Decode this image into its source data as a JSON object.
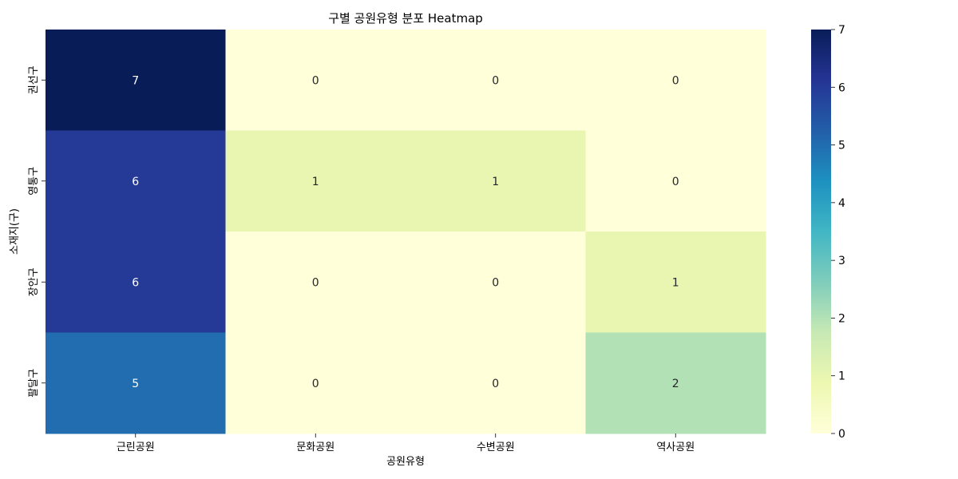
{
  "chart_data": {
    "type": "heatmap",
    "title": "구별 공원유형 분포 Heatmap",
    "xlabel": "공원유형",
    "ylabel": "소재지(구)",
    "columns": [
      "근린공원",
      "문화공원",
      "수변공원",
      "역사공원"
    ],
    "rows": [
      "권선구",
      "영통구",
      "장안구",
      "팔달구"
    ],
    "values": [
      [
        7,
        0,
        0,
        0
      ],
      [
        6,
        1,
        1,
        0
      ],
      [
        6,
        0,
        0,
        1
      ],
      [
        5,
        0,
        0,
        2
      ]
    ],
    "colorbar": {
      "min": 0,
      "max": 7,
      "ticks": [
        "0",
        "1",
        "2",
        "3",
        "4",
        "5",
        "6",
        "7"
      ]
    },
    "colormap": [
      "#ffffd9",
      "#edf8b1",
      "#c7e9b4",
      "#7fcdbb",
      "#41b6c4",
      "#1d91c0",
      "#225ea8",
      "#253494",
      "#081d58"
    ],
    "annotation_colors": {
      "dark": "#262626",
      "light": "#ffffff"
    }
  }
}
